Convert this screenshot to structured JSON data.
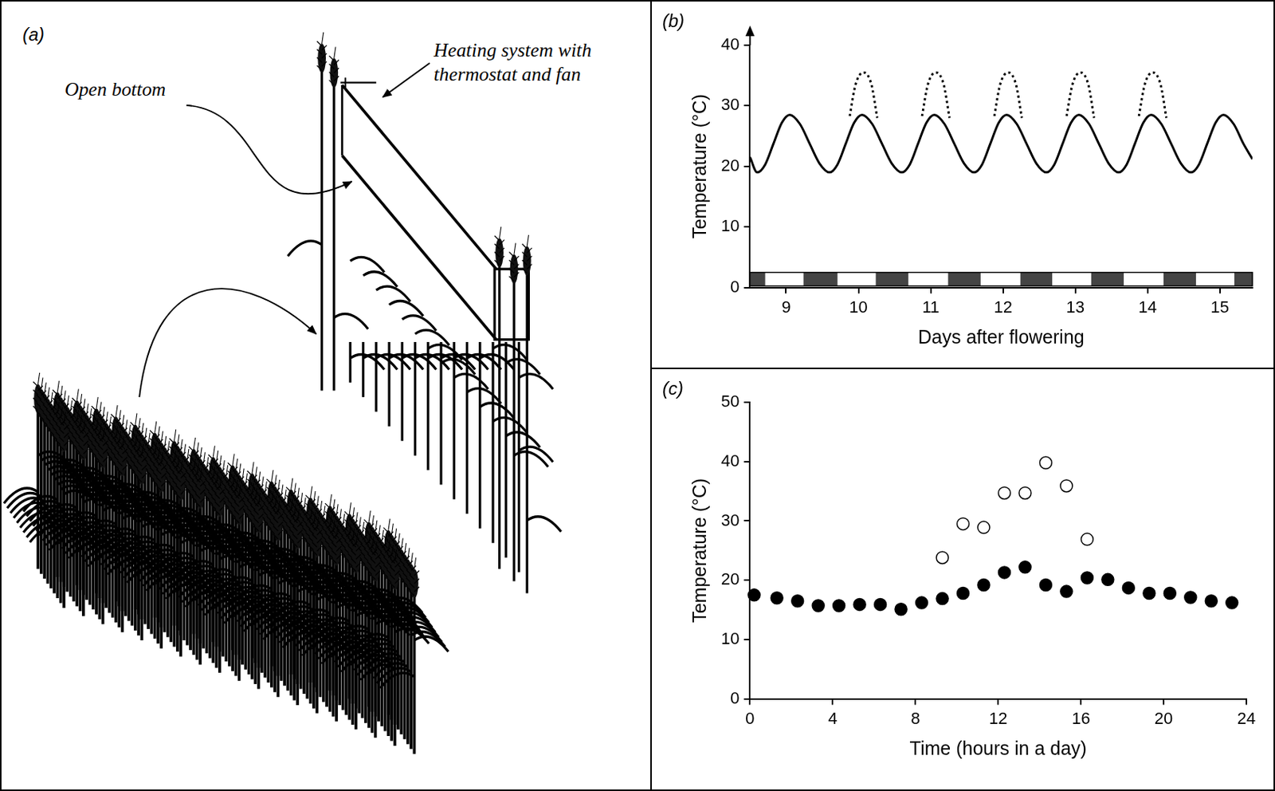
{
  "diagram": {
    "panel": "(a)",
    "labels": {
      "open_bottom": "Open bottom",
      "heating_system": [
        "Heating system with",
        "thermostat and fan"
      ]
    }
  },
  "chart_data": [
    {
      "type": "line",
      "title": "(b)",
      "x_label": "Days after flowering",
      "y_label": "Temperature (°C)",
      "xlim": [
        8.5,
        15.45
      ],
      "xticks": [
        9,
        10,
        11,
        12,
        13,
        14,
        15
      ],
      "ylim": [
        0,
        40
      ],
      "yticks": [
        0,
        10,
        20,
        30,
        40
      ],
      "grid": false,
      "dark_periods": [
        [
          8.5,
          8.71
        ],
        [
          9.24,
          9.71
        ],
        [
          10.24,
          10.69
        ],
        [
          11.24,
          11.69
        ],
        [
          12.24,
          12.68
        ],
        [
          13.22,
          13.67
        ],
        [
          14.22,
          14.67
        ],
        [
          15.2,
          15.45
        ]
      ],
      "series": [
        {
          "color": "#000000",
          "line_style": "solid",
          "x": [
            8.5,
            8.6,
            8.71,
            8.825,
            8.94,
            9.05,
            9.19,
            9.325,
            9.46,
            9.6,
            9.71,
            9.825,
            9.94,
            10.05,
            10.19,
            10.325,
            10.46,
            10.6,
            10.71,
            10.825,
            10.94,
            11.05,
            11.19,
            11.325,
            11.46,
            11.6,
            11.71,
            11.825,
            11.94,
            12.05,
            12.19,
            12.325,
            12.46,
            12.6,
            12.71,
            12.825,
            12.94,
            13.05,
            13.19,
            13.325,
            13.46,
            13.6,
            13.71,
            13.825,
            13.94,
            14.05,
            14.19,
            14.325,
            14.46,
            14.6,
            14.71,
            14.825,
            14.94,
            15.05,
            15.19,
            15.325,
            15.45
          ],
          "values": [
            21.5,
            19,
            20.3,
            23.75,
            27.2,
            28.5,
            27,
            23.75,
            20.5,
            19,
            20.3,
            23.75,
            27.2,
            28.5,
            27,
            23.75,
            20.5,
            19,
            20.3,
            23.75,
            27.2,
            28.5,
            27,
            23.75,
            20.5,
            19,
            20.3,
            23.75,
            27.2,
            28.5,
            27,
            23.75,
            20.5,
            19,
            20.3,
            23.75,
            27.2,
            28.5,
            27,
            23.75,
            20.5,
            19,
            20.3,
            23.75,
            27.2,
            28.5,
            27,
            23.75,
            20.5,
            19,
            20.3,
            23.75,
            27.2,
            28.5,
            27,
            23.75,
            21.2
          ]
        },
        {
          "color": "#000000",
          "line_style": "dotted",
          "x": [
            9.88,
            9.96,
            10.07,
            10.18,
            10.26,
            10.3,
            10.88,
            10.96,
            11.07,
            11.18,
            11.26,
            11.3,
            11.88,
            11.96,
            12.07,
            12.18,
            12.26,
            12.3,
            12.88,
            12.96,
            13.07,
            13.18,
            13.26,
            13.3,
            13.88,
            13.96,
            14.07,
            14.18,
            14.26
          ],
          "values": [
            28.3,
            33.5,
            35.5,
            33.5,
            28,
            null,
            28.3,
            33.5,
            35.5,
            33.5,
            28,
            null,
            28.3,
            33.5,
            35.5,
            33.5,
            28,
            null,
            28.3,
            33.5,
            35.5,
            33.5,
            28,
            null,
            28.3,
            33.5,
            35.5,
            33.5,
            28
          ]
        }
      ]
    },
    {
      "type": "scatter",
      "title": "(c)",
      "x_label": "Time (hours in a day)",
      "y_label": "Temperature (°C)",
      "xlim": [
        0,
        24
      ],
      "xticks": [
        0,
        4,
        8,
        12,
        16,
        20,
        24
      ],
      "ylim": [
        0,
        50
      ],
      "yticks": [
        0,
        10,
        20,
        30,
        40,
        50
      ],
      "grid": false,
      "series": [
        {
          "color": "#000000",
          "marker": "filled",
          "x": [
            0.2,
            1.3,
            2.3,
            3.3,
            4.3,
            5.3,
            6.3,
            7.3,
            8.3,
            9.3,
            10.3,
            11.3,
            12.3,
            13.3,
            14.3,
            15.3,
            16.3,
            17.3,
            18.3,
            19.3,
            20.3,
            21.3,
            22.3,
            23.3
          ],
          "values": [
            17.5,
            17,
            16.5,
            15.7,
            15.7,
            15.9,
            15.9,
            15.1,
            16.2,
            16.9,
            17.8,
            19.2,
            21.3,
            22.2,
            19.2,
            18.1,
            20.4,
            20.1,
            18.7,
            17.8,
            17.8,
            17.1,
            16.5,
            16.2
          ]
        },
        {
          "color": "#000000",
          "marker": "open",
          "x": [
            9.3,
            10.3,
            11.3,
            12.3,
            13.3,
            14.3,
            15.3,
            16.3
          ],
          "values": [
            23.8,
            29.5,
            28.9,
            34.7,
            34.7,
            39.8,
            35.9,
            26.9
          ]
        }
      ]
    }
  ]
}
